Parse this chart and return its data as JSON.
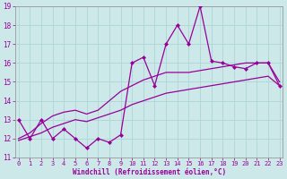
{
  "x": [
    0,
    1,
    2,
    3,
    4,
    5,
    6,
    7,
    8,
    9,
    10,
    11,
    12,
    13,
    14,
    15,
    16,
    17,
    18,
    19,
    20,
    21,
    22,
    23
  ],
  "y_main": [
    13,
    12,
    13,
    12,
    12.5,
    12,
    11.5,
    12,
    11.8,
    12.2,
    16,
    16.3,
    14.8,
    17,
    18,
    17,
    19,
    16.1,
    16,
    15.8,
    15.7,
    16,
    16,
    14.8
  ],
  "y_smooth1": [
    12.0,
    12.3,
    12.8,
    13.2,
    13.4,
    13.5,
    13.3,
    13.5,
    14.0,
    14.5,
    14.8,
    15.1,
    15.3,
    15.5,
    15.5,
    15.5,
    15.6,
    15.7,
    15.8,
    15.9,
    16.0,
    16.0,
    16.0,
    15.0
  ],
  "y_smooth2": [
    11.9,
    12.1,
    12.3,
    12.6,
    12.8,
    13.0,
    12.9,
    13.1,
    13.3,
    13.5,
    13.8,
    14.0,
    14.2,
    14.4,
    14.5,
    14.6,
    14.7,
    14.8,
    14.9,
    15.0,
    15.1,
    15.2,
    15.3,
    14.8
  ],
  "line_color": "#990099",
  "bg_color": "#cce8e8",
  "grid_color": "#b0d8d8",
  "xlabel": "Windchill (Refroidissement éolien,°C)",
  "ylim": [
    11,
    19
  ],
  "xlim": [
    -0.3,
    23.3
  ],
  "yticks": [
    11,
    12,
    13,
    14,
    15,
    16,
    17,
    18,
    19
  ],
  "xticks": [
    0,
    1,
    2,
    3,
    4,
    5,
    6,
    7,
    8,
    9,
    10,
    11,
    12,
    13,
    14,
    15,
    16,
    17,
    18,
    19,
    20,
    21,
    22,
    23
  ],
  "tick_fontsize": 5.0,
  "xlabel_fontsize": 5.5,
  "marker": "D",
  "markersize": 2.0,
  "linewidth": 0.9
}
